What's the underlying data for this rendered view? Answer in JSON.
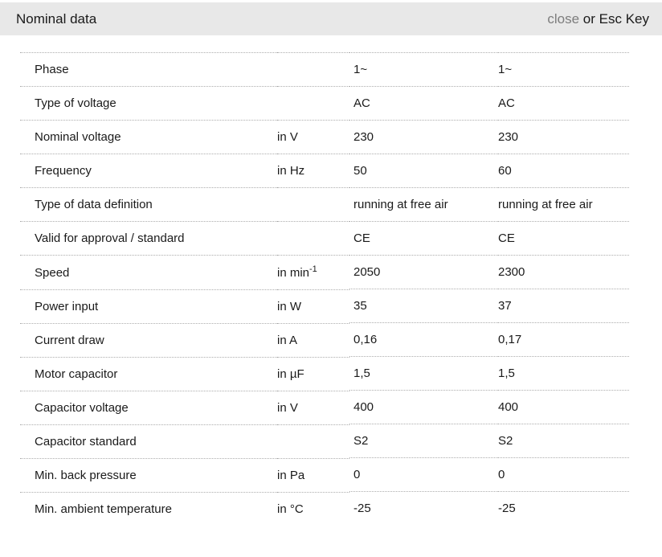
{
  "header": {
    "title": "Nominal data",
    "close_label": "close",
    "esc_hint": "or Esc Key"
  },
  "colors": {
    "header_bg": "#e8e8e8",
    "close_link": "#7d7d7d",
    "text": "#1a1a1a",
    "divider": "#adadad"
  },
  "table": {
    "rows": [
      {
        "label": "Phase",
        "unit": "",
        "unit_sup": "",
        "values": [
          "1~",
          "1~"
        ]
      },
      {
        "label": "Type of voltage",
        "unit": "",
        "unit_sup": "",
        "values": [
          "AC",
          "AC"
        ]
      },
      {
        "label": "Nominal voltage",
        "unit": "in V",
        "unit_sup": "",
        "values": [
          "230",
          "230"
        ]
      },
      {
        "label": "Frequency",
        "unit": "in Hz",
        "unit_sup": "",
        "values": [
          "50",
          "60"
        ]
      },
      {
        "label": "Type of data definition",
        "unit": "",
        "unit_sup": "",
        "values": [
          "running at free air",
          "running at free air"
        ]
      },
      {
        "label": "Valid for approval / standard",
        "unit": "",
        "unit_sup": "",
        "values": [
          "CE",
          "CE"
        ]
      },
      {
        "label": "Speed",
        "unit": "in min",
        "unit_sup": "-1",
        "values": [
          "2050",
          "2300"
        ]
      },
      {
        "label": "Power input",
        "unit": "in W",
        "unit_sup": "",
        "values": [
          "35",
          "37"
        ]
      },
      {
        "label": "Current draw",
        "unit": "in A",
        "unit_sup": "",
        "values": [
          "0,16",
          "0,17"
        ]
      },
      {
        "label": "Motor capacitor",
        "unit": "in µF",
        "unit_sup": "",
        "values": [
          "1,5",
          "1,5"
        ]
      },
      {
        "label": "Capacitor voltage",
        "unit": "in V",
        "unit_sup": "",
        "values": [
          "400",
          "400"
        ]
      },
      {
        "label": "Capacitor standard",
        "unit": "",
        "unit_sup": "",
        "values": [
          "S2",
          "S2"
        ]
      },
      {
        "label": "Min. back pressure",
        "unit": "in Pa",
        "unit_sup": "",
        "values": [
          "0",
          "0"
        ]
      },
      {
        "label": "Min. ambient temperature",
        "unit": "in °C",
        "unit_sup": "",
        "values": [
          "-25",
          "-25"
        ]
      }
    ]
  }
}
